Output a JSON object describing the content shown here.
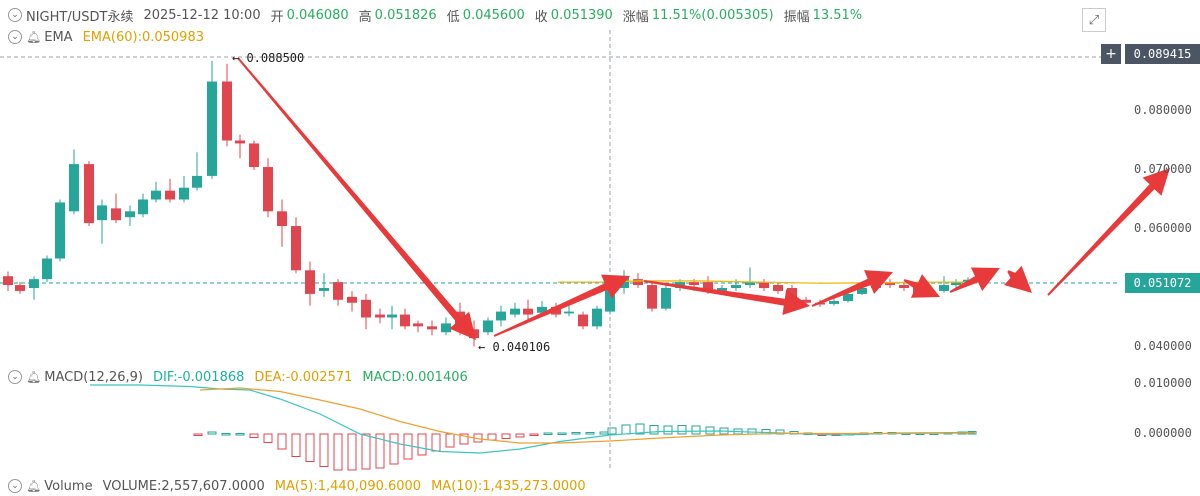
{
  "header": {
    "symbol": "NIGHT/USDT永续",
    "datetime": "2025-12-12 10:00",
    "open_label": "开",
    "open": "0.046080",
    "high_label": "高",
    "high": "0.051826",
    "low_label": "低",
    "low": "0.045600",
    "close_label": "收",
    "close": "0.051390",
    "change_label": "涨幅",
    "change": "11.51%(0.005305)",
    "amp_label": "振幅",
    "amp": "13.51%"
  },
  "ema": {
    "name": "EMA",
    "label": "EMA(60):0.050983"
  },
  "macd": {
    "name": "MACD(12,26,9)",
    "dif": "DIF:-0.001868",
    "dea": "DEA:-0.002571",
    "macd": "MACD:0.001406"
  },
  "volume": {
    "name": "Volume",
    "volume": "VOLUME:2,557,607.0000",
    "ma5": "MA(5):1,440,090.6000",
    "ma10": "MA(10):1,435,273.0000"
  },
  "price_axis": [
    "0.080000",
    "0.070000",
    "0.060000",
    "0.040000"
  ],
  "macd_axis": [
    "0.010000",
    "0.000000"
  ],
  "tags": {
    "high": "0.089415",
    "current": "0.051072"
  },
  "annotations": {
    "max": "0.088500",
    "min": "0.040106"
  },
  "colors": {
    "up": "#26a69a",
    "down": "#e0464f",
    "ema": "#f0b90b",
    "arrow": "#e83a3a",
    "dif": "#3cc5c0",
    "dea": "#f0a030"
  }
}
